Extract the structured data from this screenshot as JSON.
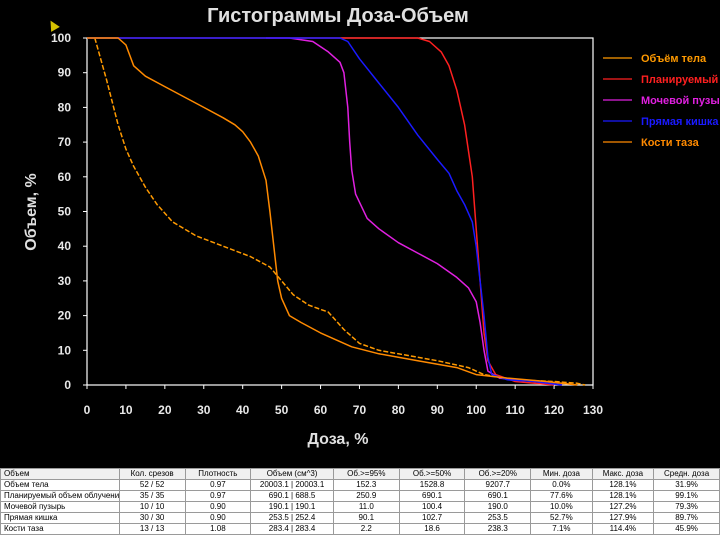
{
  "chart_data": {
    "type": "line",
    "title": "Гистограммы Доза-Объем",
    "xlabel": "Доза, %",
    "ylabel": "Объем, %",
    "xlim": [
      0,
      130
    ],
    "ylim": [
      0,
      100
    ],
    "xticks": [
      "0",
      "10",
      "20",
      "30",
      "40",
      "50",
      "60",
      "70",
      "80",
      "90",
      "100",
      "110",
      "120",
      "130"
    ],
    "yticks": [
      "0",
      "10",
      "20",
      "30",
      "40",
      "50",
      "60",
      "70",
      "80",
      "90",
      "100"
    ],
    "grid": false,
    "legend_position": "right",
    "series": [
      {
        "name": "Объём тела",
        "color": "#ff9a00",
        "dashed": true,
        "points": [
          [
            2,
            100
          ],
          [
            5,
            88
          ],
          [
            8,
            75
          ],
          [
            10,
            68
          ],
          [
            12,
            63
          ],
          [
            15,
            57
          ],
          [
            18,
            52
          ],
          [
            22,
            47
          ],
          [
            28,
            43
          ],
          [
            35,
            40
          ],
          [
            42,
            37
          ],
          [
            47,
            34
          ],
          [
            50,
            30
          ],
          [
            53,
            26
          ],
          [
            57,
            23
          ],
          [
            62,
            21
          ],
          [
            66,
            16
          ],
          [
            70,
            12
          ],
          [
            75,
            10
          ],
          [
            80,
            9
          ],
          [
            90,
            7
          ],
          [
            98,
            5
          ],
          [
            102,
            3
          ],
          [
            110,
            1.5
          ],
          [
            120,
            1
          ],
          [
            126,
            0.5
          ],
          [
            128,
            0
          ]
        ]
      },
      {
        "name": "Планируемый объём облучения",
        "color": "#ff2020",
        "dashed": false,
        "points": [
          [
            0,
            100
          ],
          [
            85,
            100
          ],
          [
            88,
            99
          ],
          [
            91,
            96
          ],
          [
            93,
            92
          ],
          [
            95,
            85
          ],
          [
            97,
            75
          ],
          [
            99,
            60
          ],
          [
            100,
            45
          ],
          [
            101,
            30
          ],
          [
            102,
            15
          ],
          [
            103,
            7
          ],
          [
            105,
            3
          ],
          [
            110,
            1
          ],
          [
            115,
            0.5
          ],
          [
            120,
            0
          ]
        ]
      },
      {
        "name": "Мочевой пузырь",
        "color": "#e020e0",
        "dashed": false,
        "points": [
          [
            46,
            100
          ],
          [
            52,
            100
          ],
          [
            58,
            99
          ],
          [
            62,
            96
          ],
          [
            65,
            93
          ],
          [
            66,
            90
          ],
          [
            67,
            80
          ],
          [
            67.5,
            70
          ],
          [
            68,
            62
          ],
          [
            69,
            55
          ],
          [
            72,
            48
          ],
          [
            75,
            45
          ],
          [
            80,
            41
          ],
          [
            85,
            38
          ],
          [
            90,
            35
          ],
          [
            95,
            31
          ],
          [
            98,
            28
          ],
          [
            100,
            24
          ],
          [
            101,
            18
          ],
          [
            102,
            10
          ],
          [
            103,
            4
          ],
          [
            106,
            2
          ],
          [
            115,
            1
          ],
          [
            122,
            0
          ]
        ]
      },
      {
        "name": "Прямая кишка",
        "color": "#1a1aff",
        "dashed": false,
        "points": [
          [
            0,
            100
          ],
          [
            65,
            100
          ],
          [
            67,
            99
          ],
          [
            70,
            94
          ],
          [
            75,
            87
          ],
          [
            80,
            80
          ],
          [
            85,
            72
          ],
          [
            90,
            65
          ],
          [
            93,
            61
          ],
          [
            95,
            56
          ],
          [
            97,
            52
          ],
          [
            99,
            47
          ],
          [
            100,
            40
          ],
          [
            101,
            30
          ],
          [
            102,
            20
          ],
          [
            103,
            8
          ],
          [
            104,
            3
          ],
          [
            108,
            1.5
          ],
          [
            115,
            1
          ],
          [
            122,
            0
          ]
        ]
      },
      {
        "name": "Кости таза",
        "color": "#ff8a00",
        "dashed": false,
        "points": [
          [
            0,
            100
          ],
          [
            8,
            100
          ],
          [
            10,
            98
          ],
          [
            11,
            95
          ],
          [
            12,
            92
          ],
          [
            15,
            89
          ],
          [
            20,
            86
          ],
          [
            25,
            83
          ],
          [
            30,
            80
          ],
          [
            35,
            77
          ],
          [
            38,
            75
          ],
          [
            40,
            73
          ],
          [
            42,
            70
          ],
          [
            44,
            66
          ],
          [
            46,
            59
          ],
          [
            47,
            50
          ],
          [
            48,
            40
          ],
          [
            49,
            30
          ],
          [
            50,
            25
          ],
          [
            52,
            20
          ],
          [
            55,
            18
          ],
          [
            60,
            15
          ],
          [
            68,
            11
          ],
          [
            75,
            9
          ],
          [
            85,
            7
          ],
          [
            95,
            5
          ],
          [
            100,
            3
          ],
          [
            108,
            2
          ],
          [
            118,
            1
          ],
          [
            126,
            0
          ]
        ]
      }
    ]
  },
  "table": {
    "headers": [
      "Объем",
      "Кол. срезов",
      "Плотность",
      "Объем (см^3)",
      "Об.>=95%",
      "Об.>=50%",
      "Об.>=20%",
      "Мин. доза",
      "Макс. доза",
      "Средн. доза"
    ],
    "rows": [
      [
        "Объем тела",
        "52 / 52",
        "0.97",
        "20003.1 | 20003.1",
        "152.3",
        "1528.8",
        "9207.7",
        "0.0%",
        "128.1%",
        "31.9%"
      ],
      [
        "Планируемый объем облучения",
        "35 / 35",
        "0.97",
        "690.1 | 688.5",
        "250.9",
        "690.1",
        "690.1",
        "77.6%",
        "128.1%",
        "99.1%"
      ],
      [
        "Мочевой пузырь",
        "10 / 10",
        "0.90",
        "190.1 | 190.1",
        "11.0",
        "100.4",
        "190.0",
        "10.0%",
        "127.2%",
        "79.3%"
      ],
      [
        "Прямая кишка",
        "30 / 30",
        "0.90",
        "253.5 | 252.4",
        "90.1",
        "102.7",
        "253.5",
        "52.7%",
        "127.9%",
        "89.7%"
      ],
      [
        "Кости таза",
        "13 / 13",
        "1.08",
        "283.4 | 283.4",
        "2.2",
        "18.6",
        "238.3",
        "7.1%",
        "114.4%",
        "45.9%"
      ]
    ]
  }
}
